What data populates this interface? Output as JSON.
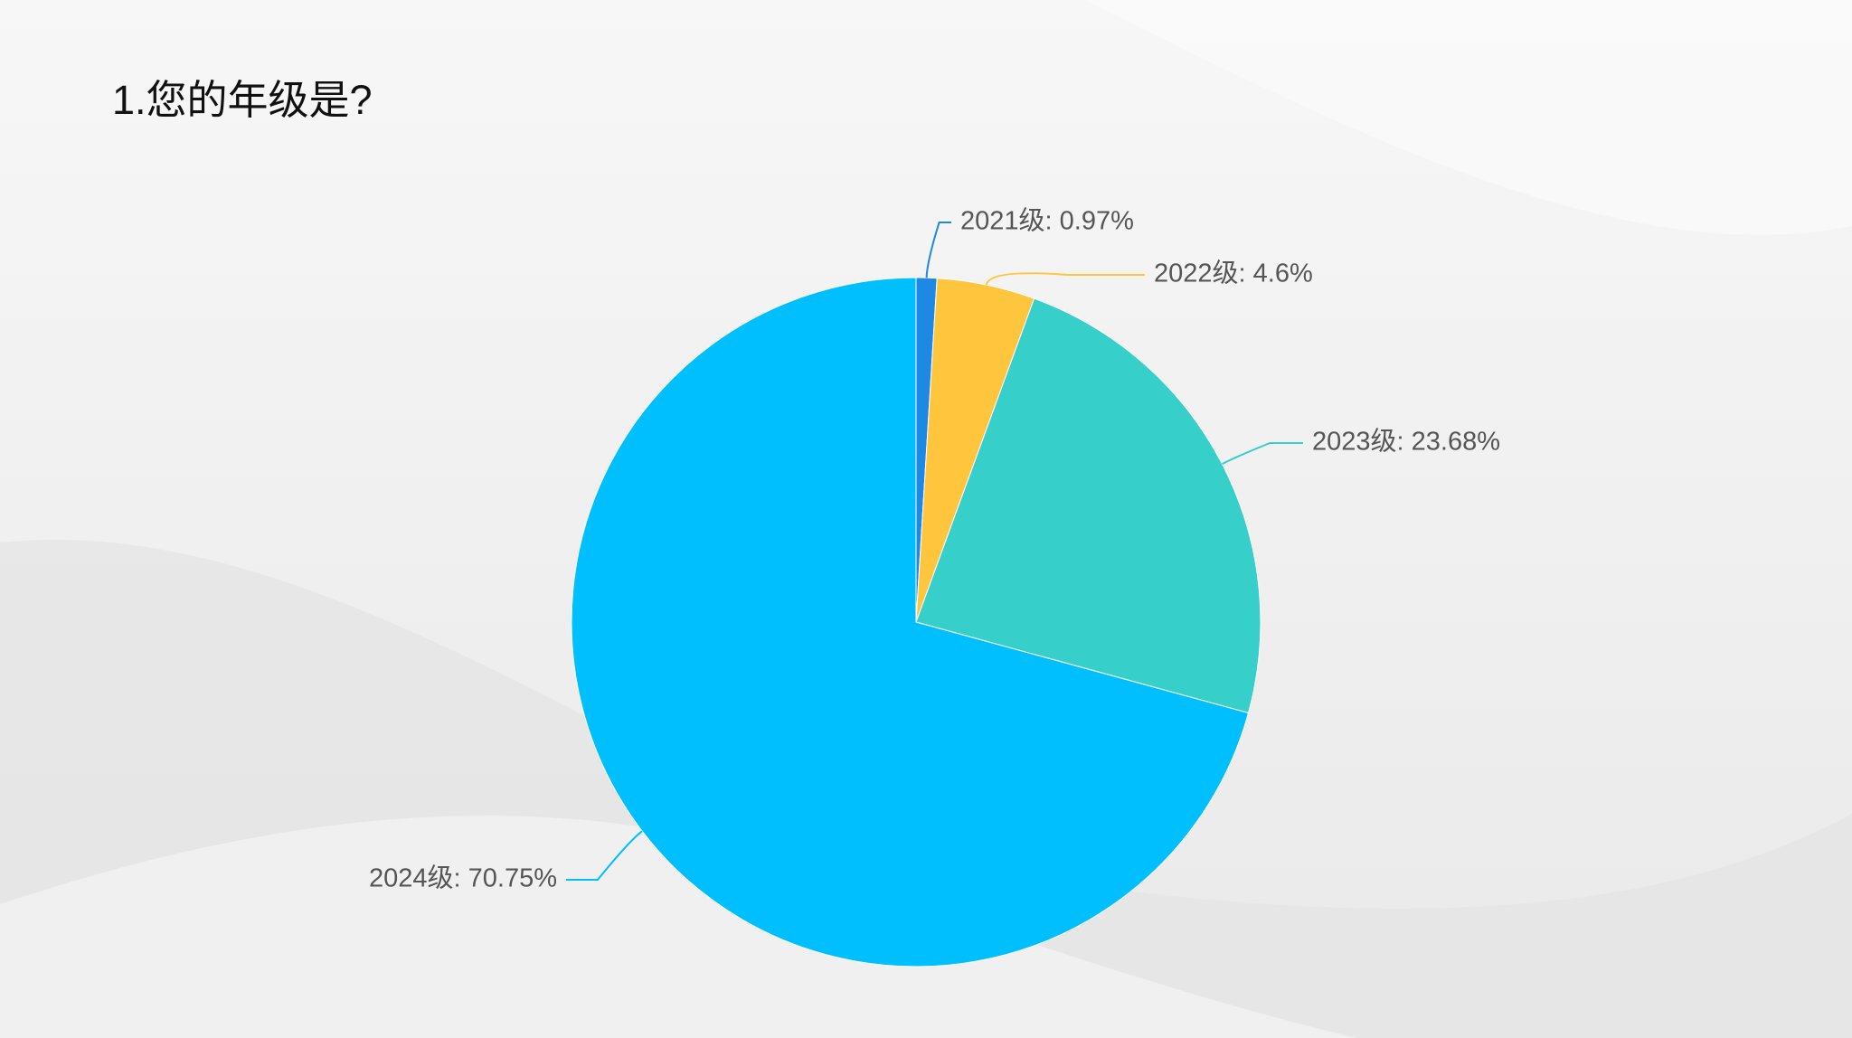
{
  "chart_data": {
    "type": "pie",
    "title": "1.您的年级是?",
    "values": [
      0.97,
      4.6,
      23.68,
      70.75
    ],
    "value_labels": [
      "2021级: 0.97%",
      "2022级: 4.6%",
      "2023级: 23.68%",
      "2024级: 70.75%"
    ],
    "colors": [
      "#1e88e5",
      "#ffc53d",
      "#36cfc9",
      "#00bfff"
    ]
  }
}
